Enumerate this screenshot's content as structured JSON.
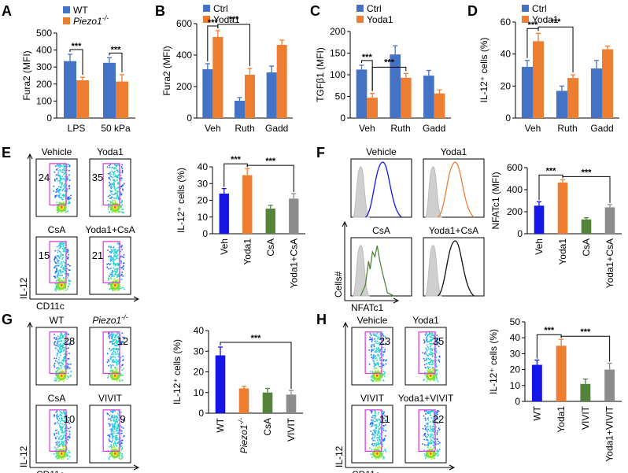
{
  "colors": {
    "blue": "#4472c4",
    "orange": "#ed7d31",
    "darkblue": "#1515e6",
    "green": "#54843a",
    "gray": "#8c8c8c",
    "gate": "#e040e0"
  },
  "panel_letters": [
    "A",
    "B",
    "C",
    "D",
    "E",
    "F",
    "G",
    "H"
  ],
  "chart_data": [
    {
      "id": "A",
      "type": "bar",
      "ylabel": "Fura2 (MFI)",
      "ylim": [
        0,
        500
      ],
      "yticks": [
        "0",
        "100",
        "200",
        "300",
        "400",
        "500"
      ],
      "categories": [
        "LPS",
        "50 kPa"
      ],
      "series": [
        {
          "name": "WT",
          "color": "#4472c4",
          "values": [
            335,
            325
          ],
          "errors": [
            40,
            30
          ]
        },
        {
          "name": "Piezo1",
          "sup": "-/-",
          "color": "#ed7d31",
          "values": [
            222,
            215
          ],
          "errors": [
            18,
            40
          ]
        }
      ],
      "legend": "top-left",
      "sig": [
        {
          "text": "***",
          "type": "pair",
          "cat": 0
        },
        {
          "text": "***",
          "type": "pair",
          "cat": 1
        }
      ]
    },
    {
      "id": "B",
      "type": "bar",
      "ylabel": "Fura2 (MFI)",
      "ylim": [
        0,
        600
      ],
      "yticks": [
        "0",
        "200",
        "400",
        "600"
      ],
      "categories": [
        "Veh",
        "Ruth",
        "Gadd"
      ],
      "series": [
        {
          "name": "Ctrl",
          "color": "#4472c4",
          "values": [
            310,
            110,
            290
          ],
          "errors": [
            35,
            20,
            40
          ]
        },
        {
          "name": "Yoda1",
          "color": "#ed7d31",
          "values": [
            515,
            275,
            465
          ],
          "errors": [
            40,
            40,
            30
          ]
        }
      ],
      "legend": "top-left",
      "sig": [
        {
          "text": "***",
          "type": "pair",
          "cat": 0
        },
        {
          "text": "***",
          "type": "span",
          "from": [
            0,
            1
          ],
          "to": [
            1,
            1
          ]
        }
      ]
    },
    {
      "id": "C",
      "type": "bar",
      "ylabel": "TGFβ1 (MFI)",
      "ylim": [
        0,
        200
      ],
      "yticks": [
        "0",
        "50",
        "100",
        "150",
        "200"
      ],
      "categories": [
        "Veh",
        "Ruth",
        "Gadd"
      ],
      "series": [
        {
          "name": "Ctrl",
          "color": "#4472c4",
          "values": [
            112,
            147,
            98
          ],
          "errors": [
            10,
            20,
            12
          ]
        },
        {
          "name": "Yoda1",
          "color": "#ed7d31",
          "values": [
            47,
            93,
            57
          ],
          "errors": [
            10,
            10,
            8
          ]
        }
      ],
      "legend": "top-left",
      "sig": [
        {
          "text": "***",
          "type": "pair",
          "cat": 0
        },
        {
          "text": "***",
          "type": "span",
          "from": [
            0,
            1
          ],
          "to": [
            1,
            1
          ]
        }
      ]
    },
    {
      "id": "D",
      "type": "bar",
      "ylabel": "IL-12⁺ cells (%)",
      "ylim": [
        0,
        60
      ],
      "yticks": [
        "0",
        "20",
        "40",
        "60"
      ],
      "categories": [
        "Veh",
        "Ruth",
        "Gadd"
      ],
      "series": [
        {
          "name": "Ctrl",
          "color": "#4472c4",
          "values": [
            32,
            17,
            31
          ],
          "errors": [
            4,
            3,
            5
          ]
        },
        {
          "name": "Yoda1",
          "color": "#ed7d31",
          "values": [
            48,
            25,
            43
          ],
          "errors": [
            5,
            2,
            2
          ]
        }
      ],
      "legend": "top-left",
      "sig": [
        {
          "text": "***",
          "type": "pair",
          "cat": 0
        },
        {
          "text": "***",
          "type": "span",
          "from": [
            0,
            1
          ],
          "to": [
            1,
            1
          ]
        }
      ]
    },
    {
      "id": "E",
      "type": "bar",
      "ylabel": "IL-12⁺ cells (%)",
      "ylim": [
        0,
        40
      ],
      "yticks": [
        "0",
        "10",
        "20",
        "30",
        "40"
      ],
      "categories": [
        "Veh",
        "Yoda1",
        "CsA",
        "Yoda1+CsA"
      ],
      "colors": [
        "#1515e6",
        "#ed7d31",
        "#54843a",
        "#8c8c8c"
      ],
      "values": [
        24,
        35,
        15,
        21
      ],
      "errors": [
        3,
        4,
        2,
        3
      ],
      "sig": [
        {
          "text": "***",
          "from": 0,
          "to": 1
        },
        {
          "text": "***",
          "from": 1,
          "to": 3
        }
      ]
    },
    {
      "id": "F",
      "type": "bar",
      "ylabel": "NFATc1 (MFI)",
      "ylim": [
        0,
        600
      ],
      "yticks": [
        "0",
        "200",
        "400",
        "600"
      ],
      "categories": [
        "Veh",
        "Yoda1",
        "CsA",
        "Yoda1+CsA"
      ],
      "colors": [
        "#1515e6",
        "#ed7d31",
        "#54843a",
        "#8c8c8c"
      ],
      "values": [
        255,
        465,
        130,
        240
      ],
      "errors": [
        35,
        25,
        15,
        25
      ],
      "sig": [
        {
          "text": "***",
          "from": 0,
          "to": 1
        },
        {
          "text": "***",
          "from": 1,
          "to": 3
        }
      ]
    },
    {
      "id": "G",
      "type": "bar",
      "ylabel": "IL-12⁺ cells (%)",
      "ylim": [
        0,
        40
      ],
      "yticks": [
        "0",
        "10",
        "20",
        "30",
        "40"
      ],
      "categories": [
        "WT",
        "Piezo1-/-",
        "CsA",
        "VIVIT"
      ],
      "colors": [
        "#1515e6",
        "#ed7d31",
        "#54843a",
        "#8c8c8c"
      ],
      "values": [
        28,
        12,
        10,
        9
      ],
      "errors": [
        4,
        1,
        2,
        2
      ],
      "sig": [
        {
          "text": "***",
          "from": 0,
          "to": 3
        }
      ]
    },
    {
      "id": "H",
      "type": "bar",
      "ylabel": "IL-12⁺ cells (%)",
      "ylim": [
        0,
        50
      ],
      "yticks": [
        "0",
        "10",
        "20",
        "30",
        "40",
        "50"
      ],
      "categories": [
        "WT",
        "Yoda1",
        "VIVIT",
        "Yoda1+VIVIT"
      ],
      "colors": [
        "#1515e6",
        "#ed7d31",
        "#54843a",
        "#8c8c8c"
      ],
      "values": [
        23,
        35,
        11,
        20
      ],
      "errors": [
        3,
        4,
        3,
        4
      ],
      "sig": [
        {
          "text": "***",
          "from": 0,
          "to": 1
        },
        {
          "text": "***",
          "from": 1,
          "to": 3
        }
      ]
    }
  ],
  "flow": {
    "E": {
      "ylabel": "IL-12",
      "xlabel": "CD11c",
      "plots": [
        {
          "title": "Vehicle",
          "value": "24"
        },
        {
          "title": "Yoda1",
          "value": "35"
        },
        {
          "title": "CsA",
          "value": "15"
        },
        {
          "title": "Yoda1+CsA",
          "value": "21"
        }
      ]
    },
    "G": {
      "ylabel": "IL-12",
      "xlabel": "CD11c",
      "plots": [
        {
          "title": "WT",
          "value": "28"
        },
        {
          "title": "Piezo1",
          "title_sup": "-/-",
          "value": "12"
        },
        {
          "title": "CsA",
          "value": "10"
        },
        {
          "title": "VIVIT",
          "value": "9"
        }
      ]
    },
    "H": {
      "ylabel": "IL-12",
      "xlabel": "CD11c",
      "plots": [
        {
          "title": "Vehicle",
          "value": "23"
        },
        {
          "title": "Yoda1",
          "value": "35"
        },
        {
          "title": "VIVIT",
          "value": "11"
        },
        {
          "title": "Yoda1+VIVIT",
          "value": "22"
        }
      ]
    }
  },
  "histograms": {
    "ylabel": "Cells#",
    "xlabel": "NFATc1",
    "plots": [
      {
        "title": "Vehicle",
        "color": "#1515e6"
      },
      {
        "title": "Yoda1",
        "color": "#ed7d31"
      },
      {
        "title": "CsA",
        "color": "#54843a"
      },
      {
        "title": "Yoda1+CsA",
        "color": "#111111"
      }
    ]
  }
}
